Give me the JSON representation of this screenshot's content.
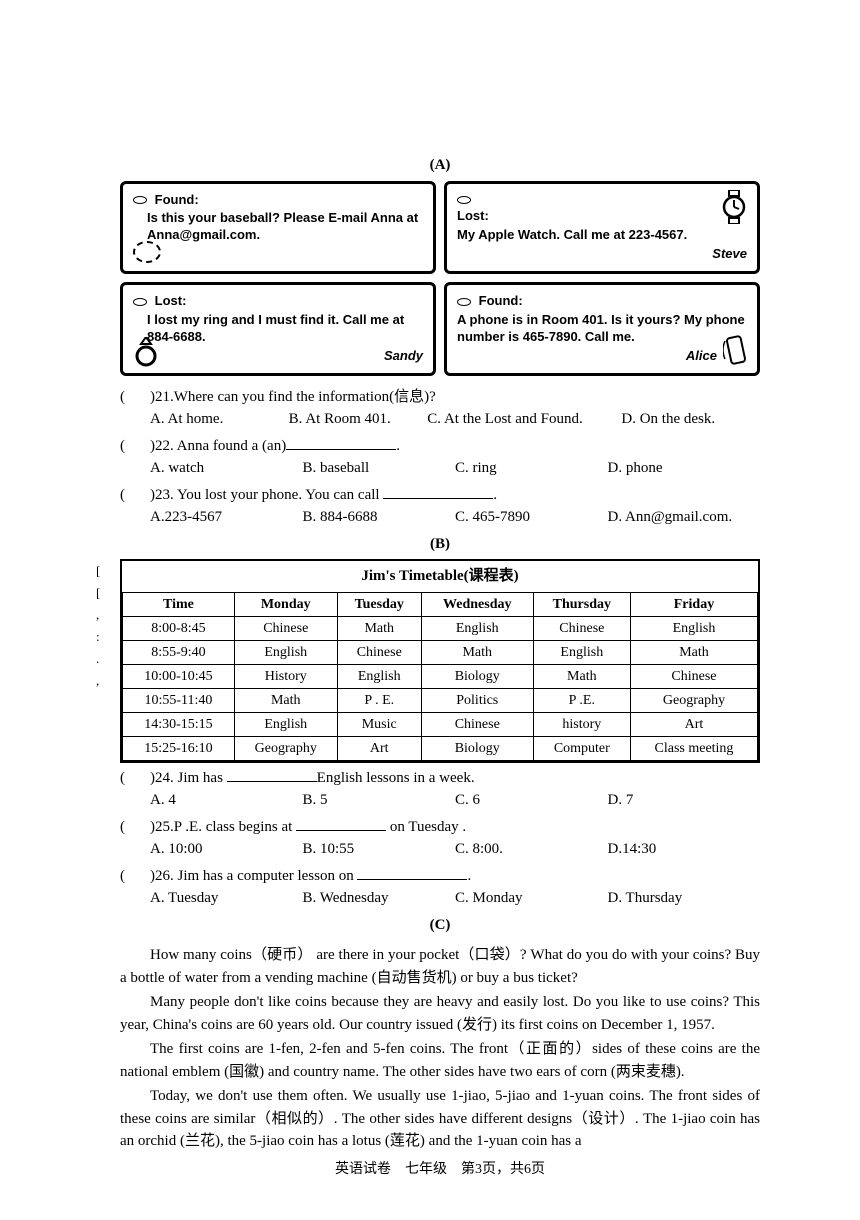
{
  "section_a": "(A)",
  "section_b": "(B)",
  "section_c": "(C)",
  "notices": [
    {
      "title": "Found:",
      "body": "Is this your baseball? Please E-mail Anna at Anna@gmail.com.",
      "sig": ""
    },
    {
      "title": "Lost:",
      "body": "My Apple Watch. Call me at 223-4567.",
      "sig": "Steve"
    },
    {
      "title": "Lost:",
      "body": "I lost my ring and I must find it. Call me at 884-6688.",
      "sig": "Sandy"
    },
    {
      "title": "Found:",
      "body": "A phone is in Room 401. Is it yours? My phone number is 465-7890. Call me.",
      "sig": "Alice"
    }
  ],
  "q21": {
    "paren": "(",
    "text": ")21.Where can you find the information(信息)?",
    "a": "A. At home.",
    "b": "B. At Room 401.",
    "c": "C. At the Lost and Found.",
    "d": "D. On the desk."
  },
  "q22": {
    "paren": "(",
    "text_pre": ")22. Anna found a (an)",
    "text_post": ".",
    "a": "A. watch",
    "b": "B. baseball",
    "c": "C. ring",
    "d": "D. phone"
  },
  "q23": {
    "paren": "(",
    "text_pre": ")23. You lost your phone. You can call ",
    "text_post": ".",
    "a": "A.223-4567",
    "b": "B. 884-6688",
    "c": "C. 465-7890",
    "d": "D. Ann@gmail.com."
  },
  "timetable": {
    "title": "Jim's Timetable(课程表)",
    "headers": [
      "Time",
      "Monday",
      "Tuesday",
      "Wednesday",
      "Thursday",
      "Friday"
    ],
    "rows": [
      [
        "8:00-8:45",
        "Chinese",
        "Math",
        "English",
        "Chinese",
        "English"
      ],
      [
        "8:55-9:40",
        "English",
        "Chinese",
        "Math",
        "English",
        "Math"
      ],
      [
        "10:00-10:45",
        "History",
        "English",
        "Biology",
        "Math",
        "Chinese"
      ],
      [
        "10:55-11:40",
        "Math",
        "P . E.",
        "Politics",
        "P .E.",
        "Geography"
      ],
      [
        "14:30-15:15",
        "English",
        "Music",
        "Chinese",
        "history",
        "Art"
      ],
      [
        "15:25-16:10",
        "Geography",
        "Art",
        "Biology",
        "Computer",
        "Class meeting"
      ]
    ]
  },
  "q24": {
    "paren": "(",
    "text_pre": ")24. Jim has ",
    "text_post": "English lessons in a week.",
    "a": "A. 4",
    "b": "B. 5",
    "c": "C. 6",
    "d": "D. 7"
  },
  "q25": {
    "paren": "(",
    "text_pre": ")25.P .E. class begins at ",
    "text_post": " on Tuesday .",
    "a": "A. 10:00",
    "b": "B. 10:55",
    "c": "C. 8:00.",
    "d": "D.14:30"
  },
  "q26": {
    "paren": "(",
    "text_pre": ")26. Jim has a computer lesson on ",
    "text_post": ".",
    "a": "A. Tuesday",
    "b": "B. Wednesday",
    "c": "C. Monday",
    "d": "D. Thursday"
  },
  "passage": {
    "p1": "How many coins（硬币） are there in your pocket（口袋）? What do you do with your coins? Buy a bottle of water from a vending machine (自动售货机) or buy a bus ticket?",
    "p2": "Many people don't like coins because they are heavy and easily lost. Do you like to use coins? This year, China's coins are 60 years old. Our country issued (发行) its first coins on December 1, 1957.",
    "p3": "The first coins are 1-fen, 2-fen and 5-fen coins. The front（正面的）sides of these coins are the national emblem (国徽) and country name. The other sides have two ears of corn (两束麦穗).",
    "p4": "Today, we don't use them often. We usually use 1-jiao, 5-jiao and 1-yuan coins. The front sides of these coins are similar（相似的）. The other sides have different designs（设计）. The 1-jiao coin has an orchid (兰花), the 5-jiao coin has a lotus (莲花) and the 1-yuan coin has a"
  },
  "footer": "英语试卷　七年级　第3页，共6页",
  "left_marks": [
    "[",
    "[",
    ",",
    ":",
    ".",
    ","
  ]
}
